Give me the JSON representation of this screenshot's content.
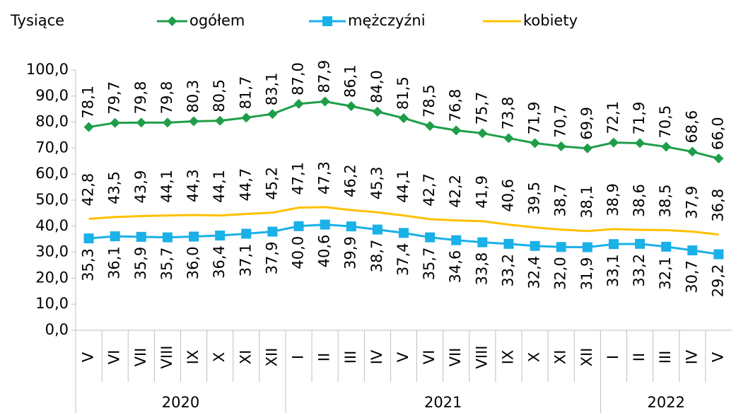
{
  "chart_data": {
    "type": "line",
    "y_unit": "Tysiące",
    "groups": [
      {
        "label": "2020",
        "categories": [
          "V",
          "VI",
          "VII",
          "VIII",
          "IX",
          "X",
          "XI",
          "XII"
        ]
      },
      {
        "label": "2021",
        "categories": [
          "I",
          "II",
          "III",
          "IV",
          "V",
          "VI",
          "VII",
          "VIII",
          "IX",
          "X",
          "XI",
          "XII"
        ]
      },
      {
        "label": "2022",
        "categories": [
          "I",
          "II",
          "III",
          "IV",
          "V"
        ]
      }
    ],
    "series": [
      {
        "name": "ogółem",
        "color": "#1e9e48",
        "marker": "diamond",
        "values": [
          78.1,
          79.7,
          79.8,
          79.8,
          80.3,
          80.5,
          81.7,
          83.1,
          87.0,
          87.9,
          86.1,
          84.0,
          81.5,
          78.5,
          76.8,
          75.7,
          73.8,
          71.9,
          70.7,
          69.9,
          72.1,
          71.9,
          70.5,
          68.6,
          66.0
        ],
        "value_labels": [
          "78,1",
          "79,7",
          "79,8",
          "79,8",
          "80,3",
          "80,5",
          "81,7",
          "83,1",
          "87,0",
          "87,9",
          "86,1",
          "84,0",
          "81,5",
          "78,5",
          "76,8",
          "75,7",
          "73,8",
          "71,9",
          "70,7",
          "69,9",
          "72,1",
          "71,9",
          "70,5",
          "68,6",
          "66,0"
        ]
      },
      {
        "name": "mężczyźni",
        "color": "#1ab0e8",
        "marker": "square",
        "values": [
          35.3,
          36.1,
          35.9,
          35.7,
          36.0,
          36.4,
          37.1,
          37.9,
          40.0,
          40.6,
          39.9,
          38.7,
          37.4,
          35.7,
          34.6,
          33.8,
          33.2,
          32.4,
          32.0,
          31.9,
          33.1,
          33.2,
          32.1,
          30.7,
          29.2
        ],
        "value_labels": [
          "35,3",
          "36,1",
          "35,9",
          "35,7",
          "36,0",
          "36,4",
          "37,1",
          "37,9",
          "40,0",
          "40,6",
          "39,9",
          "38,7",
          "37,4",
          "35,7",
          "34,6",
          "33,8",
          "33,2",
          "32,4",
          "32,0",
          "31,9",
          "33,1",
          "33,2",
          "32,1",
          "30,7",
          "29,2"
        ]
      },
      {
        "name": "kobiety",
        "color": "#ffc000",
        "marker": "none",
        "values": [
          42.8,
          43.5,
          43.9,
          44.1,
          44.3,
          44.1,
          44.7,
          45.2,
          47.1,
          47.3,
          46.2,
          45.3,
          44.1,
          42.7,
          42.2,
          41.9,
          40.6,
          39.5,
          38.7,
          38.1,
          38.9,
          38.6,
          38.5,
          37.9,
          36.8
        ],
        "value_labels": [
          "42,8",
          "43,5",
          "43,9",
          "44,1",
          "44,3",
          "44,1",
          "44,7",
          "45,2",
          "47,1",
          "47,3",
          "46,2",
          "45,3",
          "44,1",
          "42,7",
          "42,2",
          "41,9",
          "40,6",
          "39,5",
          "38,7",
          "38,1",
          "38,9",
          "38,6",
          "38,5",
          "37,9",
          "36,8"
        ]
      }
    ],
    "ylim": [
      0,
      100
    ],
    "yticks": [
      {
        "value": 0,
        "label": "0,0"
      },
      {
        "value": 10,
        "label": "10,0"
      },
      {
        "value": 20,
        "label": "20,0"
      },
      {
        "value": 30,
        "label": "30,0"
      },
      {
        "value": 40,
        "label": "40,0"
      },
      {
        "value": 50,
        "label": "50,0"
      },
      {
        "value": 60,
        "label": "60,0"
      },
      {
        "value": 70,
        "label": "70,0"
      },
      {
        "value": 80,
        "label": "80,0"
      },
      {
        "value": 90,
        "label": "90,0"
      },
      {
        "value": 100,
        "label": "100,0"
      }
    ],
    "grid": false
  }
}
